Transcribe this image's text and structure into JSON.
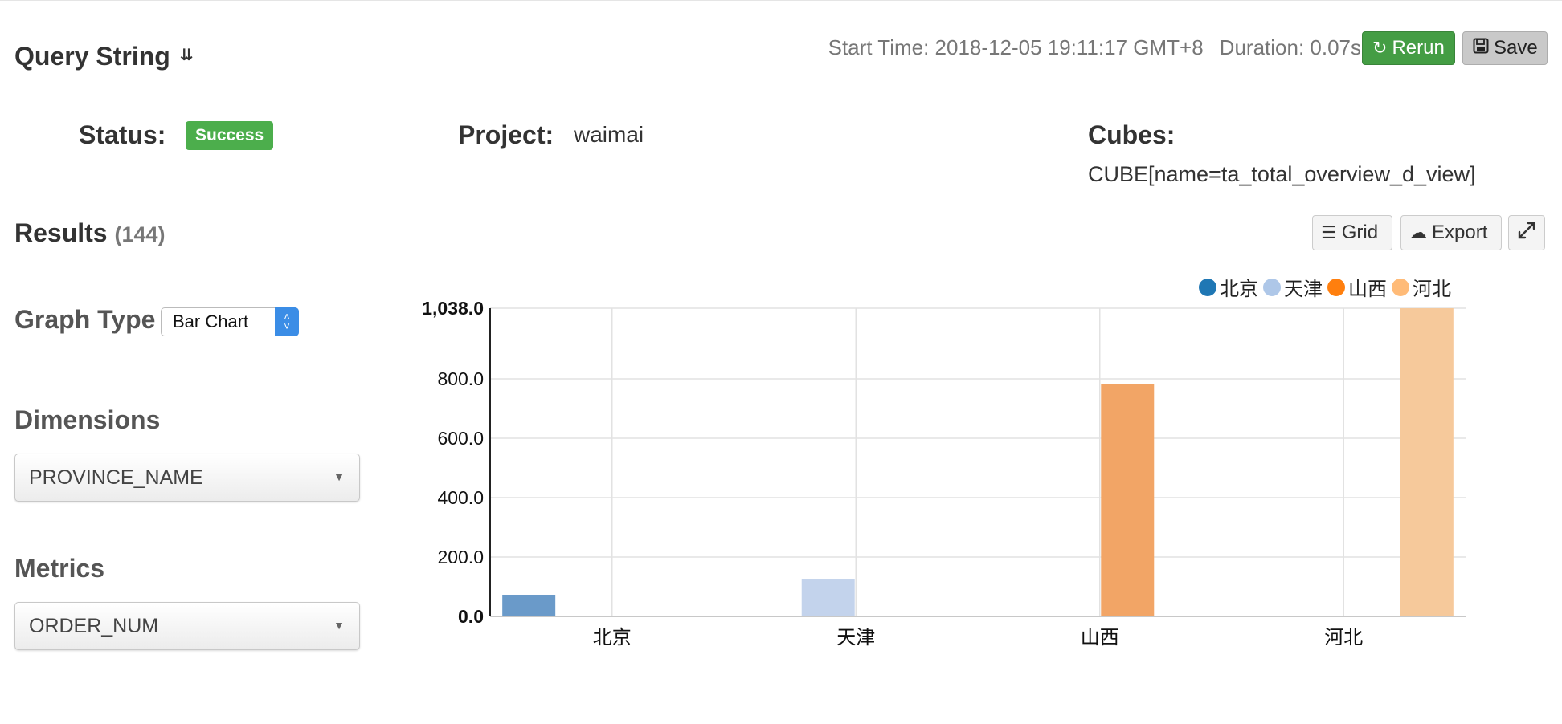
{
  "header": {
    "query_title": "Query String",
    "start_time": "Start Time: 2018-12-05 19:11:17 GMT+8",
    "duration": "Duration: 0.07s",
    "rerun_label": "Rerun",
    "save_label": "Save"
  },
  "info": {
    "status_label": "Status:",
    "status_value": "Success",
    "project_label": "Project:",
    "project_value": "waimai",
    "cubes_label": "Cubes:",
    "cubes_value": "CUBE[name=ta_total_overview_d_view]"
  },
  "results": {
    "title": "Results",
    "count": "(144)",
    "grid_label": "Grid",
    "export_label": "Export"
  },
  "controls": {
    "graph_type_label": "Graph Type",
    "graph_type_value": "Bar Chart",
    "dimensions_label": "Dimensions",
    "dimensions_value": "PROVINCE_NAME",
    "metrics_label": "Metrics",
    "metrics_value": "ORDER_NUM"
  },
  "colors": {
    "rerun_bg": "#449d44",
    "success_badge": "#4cae4c",
    "save_bg": "#c9c9c9"
  },
  "chart_data": {
    "type": "bar",
    "categories": [
      "北京",
      "天津",
      "山西",
      "河北"
    ],
    "series": [
      {
        "name": "北京",
        "color": "#6a9ac9",
        "values": [
          73,
          0,
          0,
          0
        ]
      },
      {
        "name": "天津",
        "color": "#c3d3ec",
        "values": [
          0,
          127,
          0,
          0
        ]
      },
      {
        "name": "山西",
        "color": "#f2a566",
        "values": [
          0,
          0,
          783,
          0
        ]
      },
      {
        "name": "河北",
        "color": "#f6c99b",
        "values": [
          0,
          0,
          0,
          1038
        ]
      }
    ],
    "legend_colors": [
      "#1f77b4",
      "#aec7e8",
      "#ff7f0e",
      "#ffbb78"
    ],
    "y_ticks": [
      "0.0",
      "200.0",
      "400.0",
      "600.0",
      "800.0",
      "1,038.0"
    ],
    "y_tick_values": [
      0,
      200,
      400,
      600,
      800,
      1038
    ],
    "ylim": [
      0,
      1038
    ],
    "grid": true,
    "legend_position": "top-right"
  }
}
